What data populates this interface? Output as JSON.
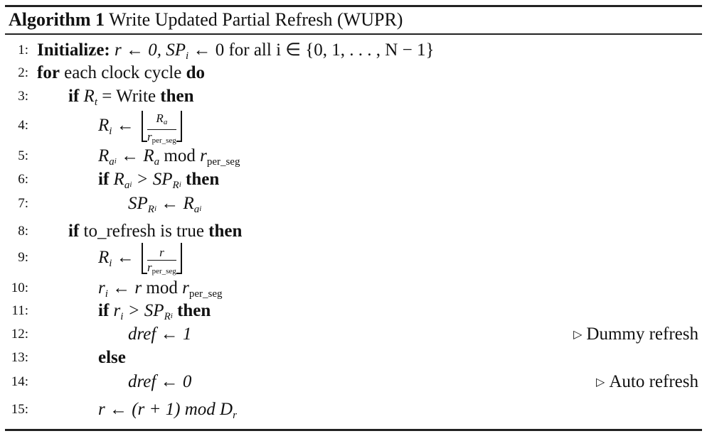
{
  "algorithm": {
    "label": "Algorithm 1",
    "title": "Write Updated Partial Refresh (WUPR)"
  },
  "lines": [
    {
      "num": "1:",
      "kw1": "Initialize:",
      "text": "r ← 0, SP",
      "sub": "i",
      "text2": " ← 0 for all i ∈ {0, 1, . . . , N − 1}"
    },
    {
      "num": "2:",
      "kw1": "for",
      "text": " each clock cycle ",
      "kw2": "do"
    },
    {
      "num": "3:",
      "kw1": "if",
      "lhs": "R",
      "lsub": "t",
      "text": " = Write ",
      "kw2": "then"
    },
    {
      "num": "4:",
      "lhs": "R",
      "lsub": "i",
      "arrow": " ← ",
      "numer": "R",
      "numer_sub": "a",
      "denom": "r",
      "denom_sub": "per_seg"
    },
    {
      "num": "5:",
      "lhs": "R",
      "lsub": "a",
      "lsub2": "i",
      "text": " ← R",
      "rsub": "a",
      "mod": " mod ",
      "r": "r",
      "rsub2": "per_seg"
    },
    {
      "num": "6:",
      "kw1": "if",
      "lhs": "R",
      "lsub": "a",
      "lsub2": "i",
      "text": " > SP",
      "rsub": "R",
      "rsub2": "i",
      "kw2": "then"
    },
    {
      "num": "7:",
      "lhs": "SP",
      "lsub": "R",
      "lsub2": "i",
      "text": " ← R",
      "rsub": "a",
      "rsub2": "i"
    },
    {
      "num": "8:",
      "kw1": "if",
      "text": " to_refresh is true ",
      "kw2": "then"
    },
    {
      "num": "9:",
      "lhs": "R",
      "lsub": "i",
      "arrow": " ← ",
      "numer": "r",
      "denom": "r",
      "denom_sub": "per_seg"
    },
    {
      "num": "10:",
      "lhs": "r",
      "lsub": "i",
      "text": " ← r",
      "mod": " mod ",
      "r": "r",
      "rsub2": "per_seg"
    },
    {
      "num": "11:",
      "kw1": "if",
      "lhs": "r",
      "lsub": "i",
      "text": " > SP",
      "rsub": "R",
      "rsub2": "i",
      "kw2": "then"
    },
    {
      "num": "12:",
      "text": "dref ← 1",
      "comment": "Dummy refresh"
    },
    {
      "num": "13:",
      "kw1": "else"
    },
    {
      "num": "14:",
      "text": "dref ← 0",
      "comment": "Auto refresh"
    },
    {
      "num": "15:",
      "text": "r ← (r + 1) mod D",
      "rsub": "r"
    }
  ],
  "comment_marker": "▷"
}
